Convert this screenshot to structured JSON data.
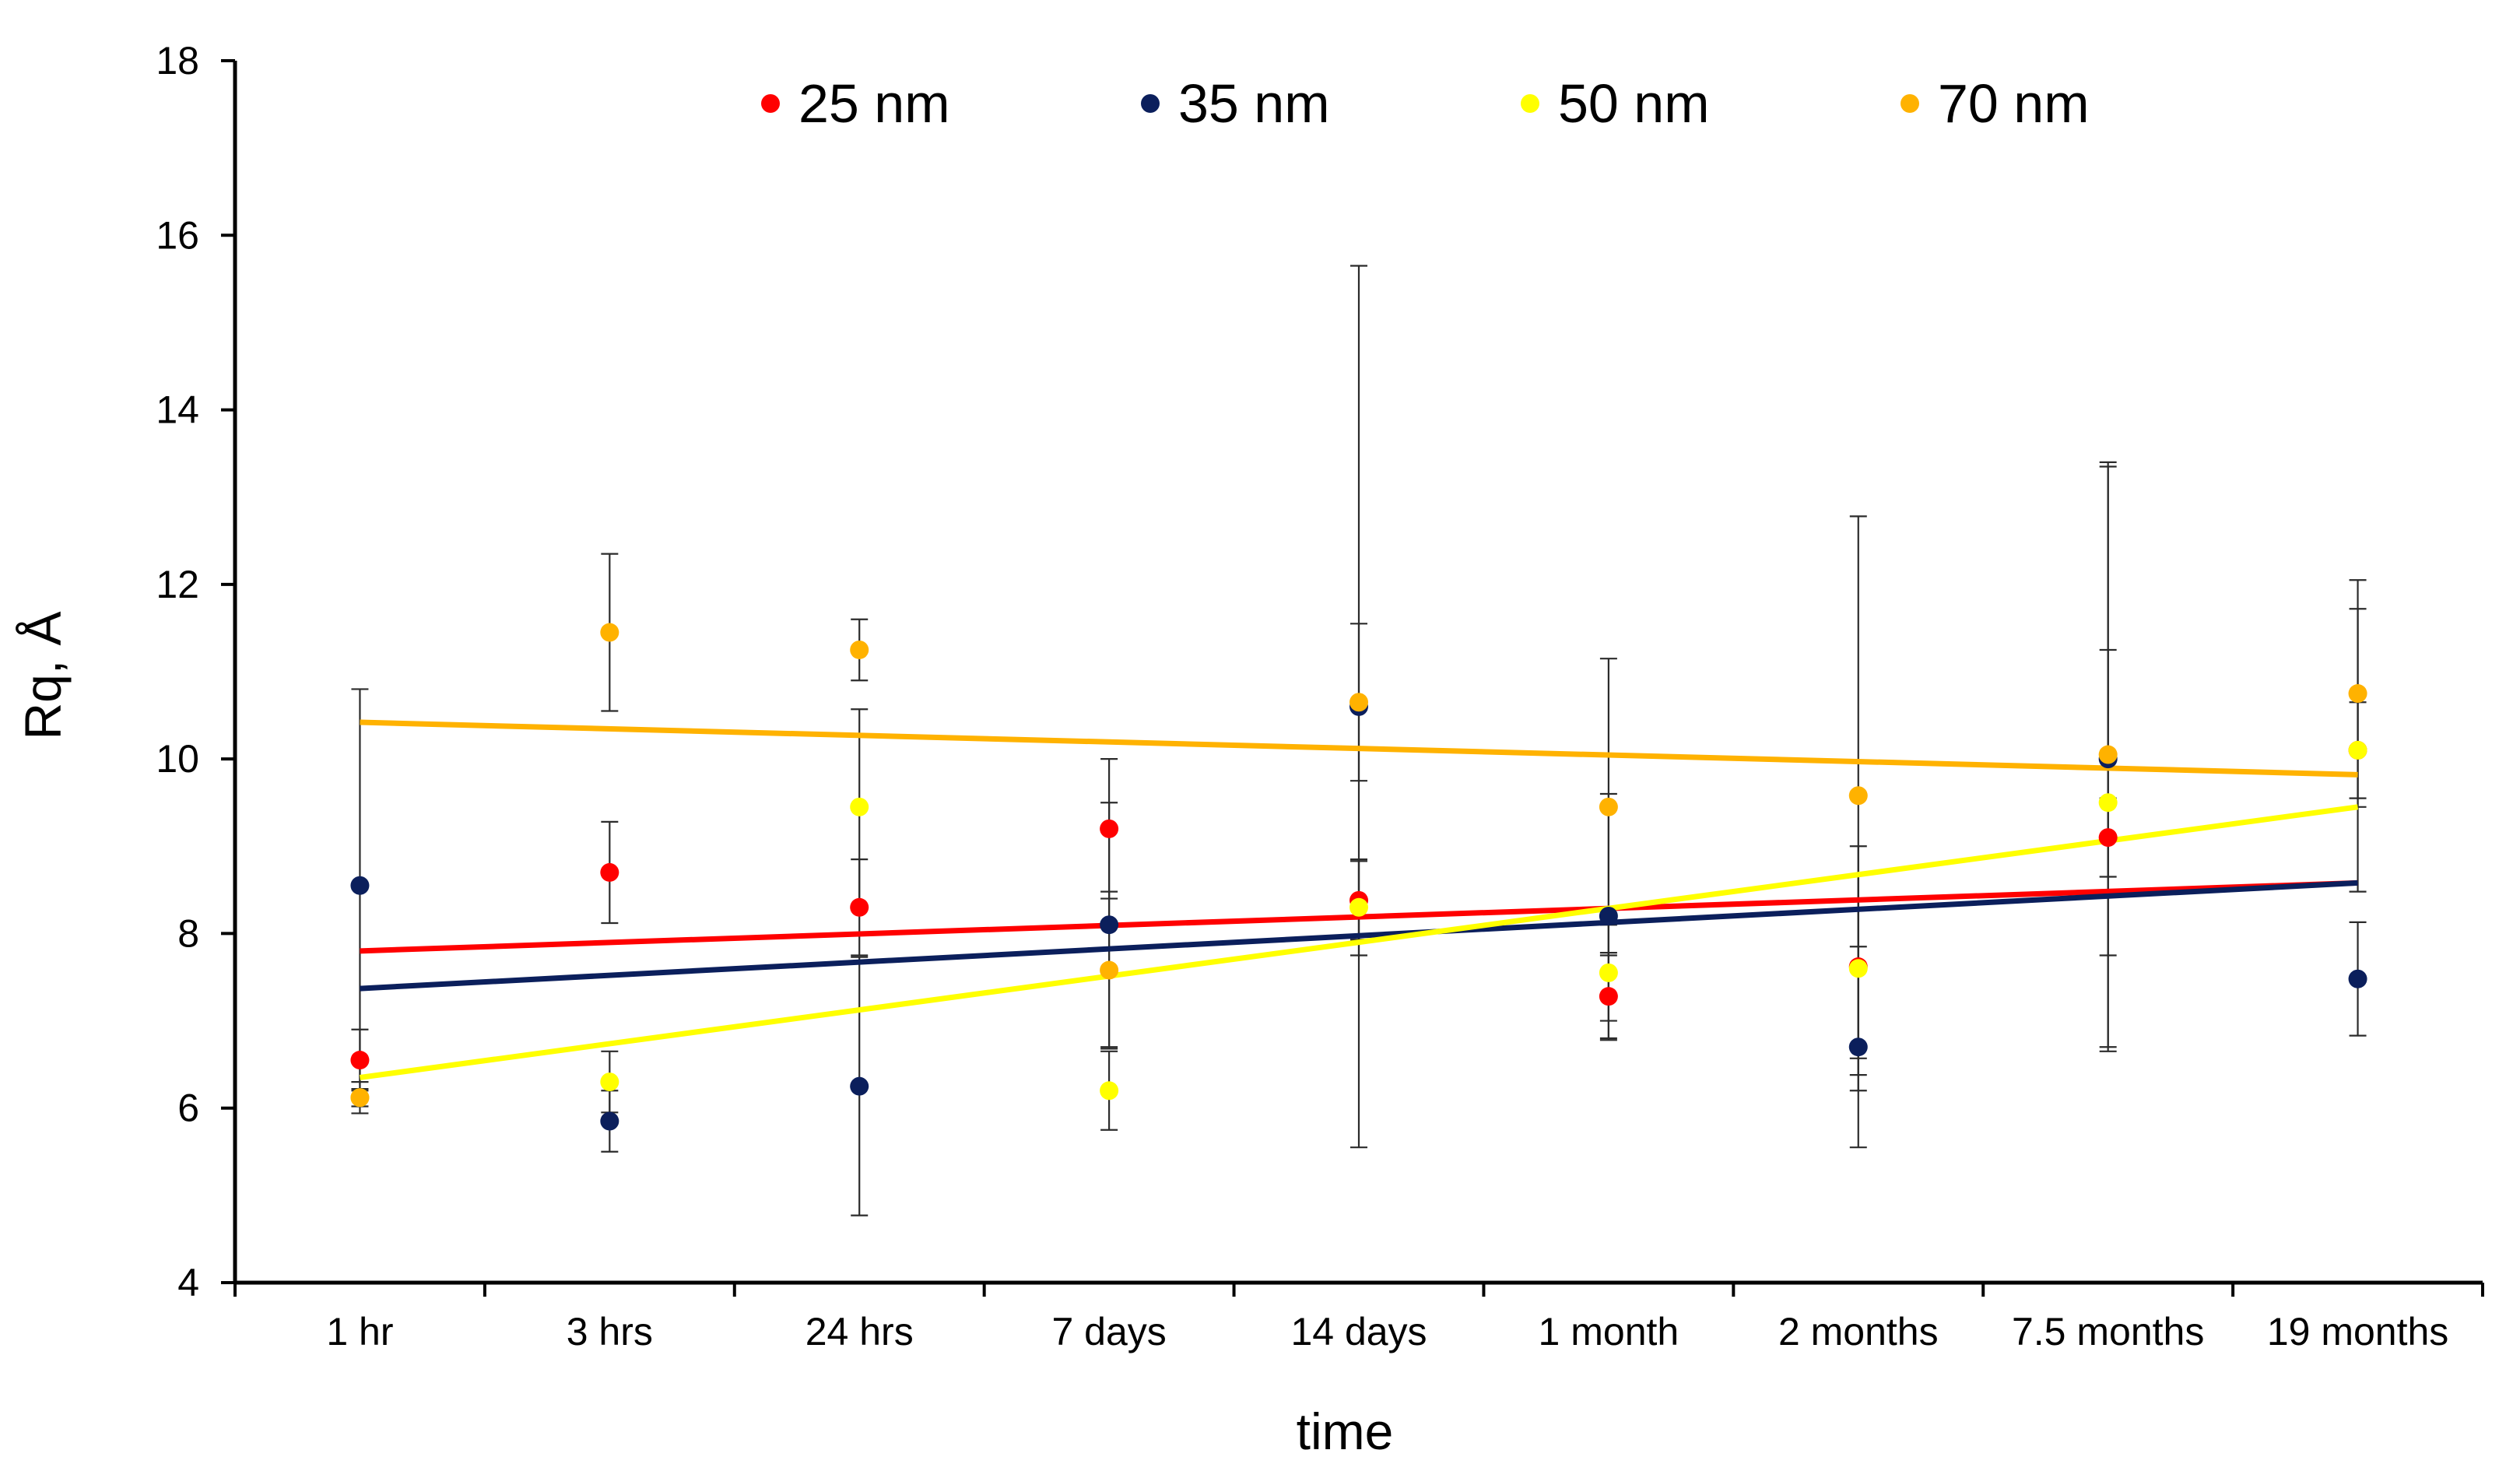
{
  "chart_data": {
    "type": "scatter",
    "title": "",
    "xlabel": "time",
    "ylabel": "Rq, Å",
    "categories": [
      "1 hr",
      "3 hrs",
      "24 hrs",
      "7 days",
      "14 days",
      "1 month",
      "2 months",
      "7.5 months",
      "19 months"
    ],
    "ylim": [
      4,
      18
    ],
    "yticks": [
      4,
      6,
      8,
      10,
      12,
      14,
      16,
      18
    ],
    "grid": false,
    "legend_position": "top",
    "series": [
      {
        "name": "25 nm",
        "color": "#ff0000",
        "values": [
          6.55,
          8.7,
          8.3,
          9.2,
          8.38,
          7.28,
          7.62,
          9.1,
          10.1
        ],
        "errors": [
          0.35,
          0.58,
          0.55,
          0.8,
          0.45,
          0.5,
          1.05,
          0.45,
          0.55
        ],
        "trend": [
          7.8,
          8.58
        ]
      },
      {
        "name": "35 nm",
        "color": "#0b1f5c",
        "values": [
          8.55,
          5.85,
          6.25,
          8.1,
          10.6,
          8.2,
          6.7,
          10.0,
          7.48
        ],
        "errors": [
          2.25,
          0.35,
          1.48,
          1.4,
          5.05,
          1.4,
          1.15,
          3.35,
          0.65
        ],
        "trend": [
          7.37,
          8.58
        ]
      },
      {
        "name": "50 nm",
        "color": "#ffff00",
        "values": [
          6.12,
          6.3,
          9.45,
          6.2,
          8.3,
          7.55,
          7.6,
          9.5,
          10.1
        ],
        "errors": [
          0.18,
          0.35,
          1.12,
          0.45,
          0.55,
          0.55,
          1.4,
          1.75,
          1.62
        ],
        "trend": [
          6.35,
          9.45
        ]
      },
      {
        "name": "70 nm",
        "color": "#ffb200",
        "values": [
          6.12,
          11.45,
          11.25,
          7.58,
          10.65,
          9.45,
          9.58,
          10.05,
          10.75
        ],
        "errors": [
          0.1,
          0.9,
          0.35,
          0.9,
          0.9,
          1.7,
          3.2,
          3.35,
          1.3
        ],
        "trend": [
          10.42,
          9.82
        ]
      }
    ]
  }
}
